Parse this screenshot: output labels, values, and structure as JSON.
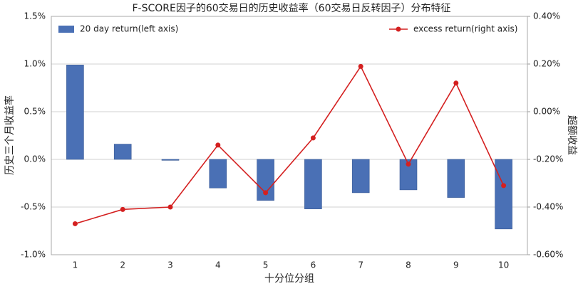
{
  "chart_data": {
    "type": "bar-line",
    "title": "F-SCORE因子的60交易日的历史收益率（60交易日反转因子）分布特征",
    "x_label": "十分位分组",
    "y_label": "历史三个月收益率",
    "y2_label": "超额收益",
    "categories": [
      "1",
      "2",
      "3",
      "4",
      "5",
      "6",
      "7",
      "8",
      "9",
      "10"
    ],
    "series": [
      {
        "name": "20 day return(left axis)",
        "type": "bar",
        "color": "#4a70b5",
        "values": [
          0.99,
          0.16,
          -0.01,
          -0.3,
          -0.43,
          -0.52,
          -0.35,
          -0.32,
          -0.4,
          -0.73
        ]
      },
      {
        "name": "excess return(right axis)",
        "type": "line",
        "axis": "y2",
        "color": "#d42020",
        "values": [
          -0.47,
          -0.41,
          -0.4,
          -0.14,
          -0.34,
          -0.11,
          0.19,
          -0.22,
          0.12,
          -0.31
        ]
      }
    ],
    "ylim": [
      -1.0,
      1.5
    ],
    "yticks": [
      {
        "value": -1.0,
        "label": "-1.0%"
      },
      {
        "value": -0.5,
        "label": "-0.5%"
      },
      {
        "value": 0.0,
        "label": "0.0%"
      },
      {
        "value": 0.5,
        "label": "0.5%"
      },
      {
        "value": 1.0,
        "label": "1.0%"
      },
      {
        "value": 1.5,
        "label": "1.5%"
      }
    ],
    "y2lim": [
      -0.6,
      0.4
    ],
    "y2ticks": [
      {
        "value": -0.6,
        "label": "-0.60%"
      },
      {
        "value": -0.4,
        "label": "-0.40%"
      },
      {
        "value": -0.2,
        "label": "-0.20%"
      },
      {
        "value": 0.0,
        "label": "0.00%"
      },
      {
        "value": 0.2,
        "label": "0.20%"
      },
      {
        "value": 0.4,
        "label": "0.40%"
      }
    ],
    "grid": true
  }
}
